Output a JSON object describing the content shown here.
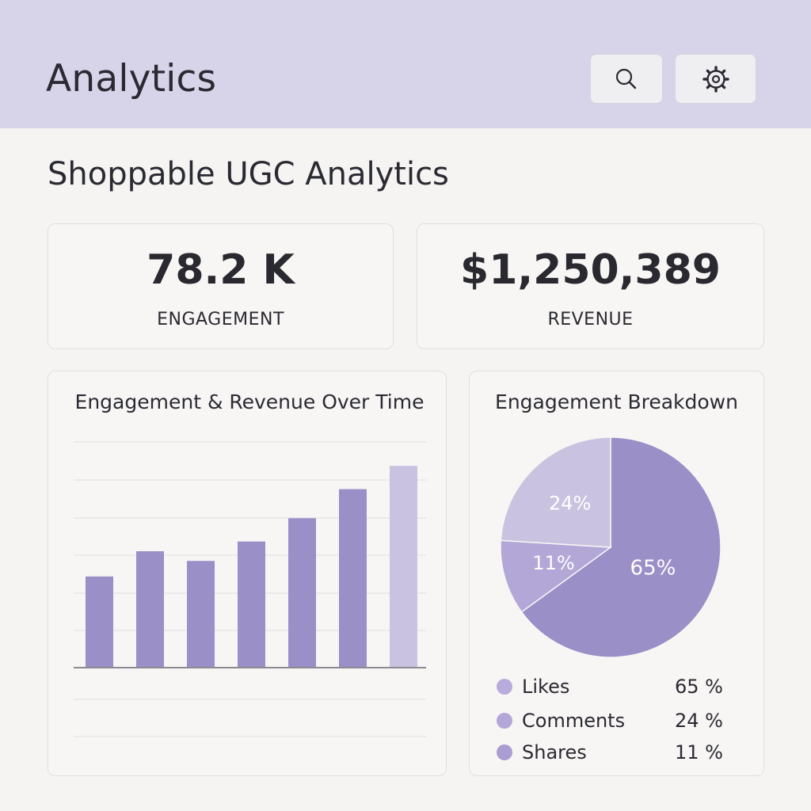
{
  "header": {
    "title": "Analytics",
    "search_icon": "search-icon",
    "settings_icon": "gear-icon"
  },
  "page_title": "Shoppable UGC Analytics",
  "kpis": [
    {
      "value": "78.2 K",
      "label": "ENGAGEMENT"
    },
    {
      "value": "$1,250,389",
      "label": "REVENUE"
    }
  ],
  "colors": {
    "header_bg": "#d7d3e9",
    "bar": "#9b8fc8",
    "bar_last": "#c9c2e0",
    "likes": "#9b8fc8",
    "comments": "#c9c2e0",
    "shares": "#b3a7d8"
  },
  "chart_data": [
    {
      "type": "bar",
      "title": "Engagement & Revenue Over Time",
      "categories": [
        "",
        "",
        "",
        "",
        "",
        "",
        ""
      ],
      "values": [
        23.5,
        30,
        27.5,
        32.5,
        38.5,
        46,
        52
      ],
      "ylim": [
        0,
        60
      ],
      "grid": true
    },
    {
      "type": "pie",
      "title": "Engagement Breakdown",
      "slices": [
        {
          "label": "Likes",
          "value": 65,
          "text": "65%",
          "legend_pct": "65 %"
        },
        {
          "label": "Comments",
          "value": 24,
          "text": "24%",
          "legend_pct": "24 %"
        },
        {
          "label": "Shares",
          "value": 11,
          "text": "11%",
          "legend_pct": "11 %"
        }
      ]
    }
  ]
}
